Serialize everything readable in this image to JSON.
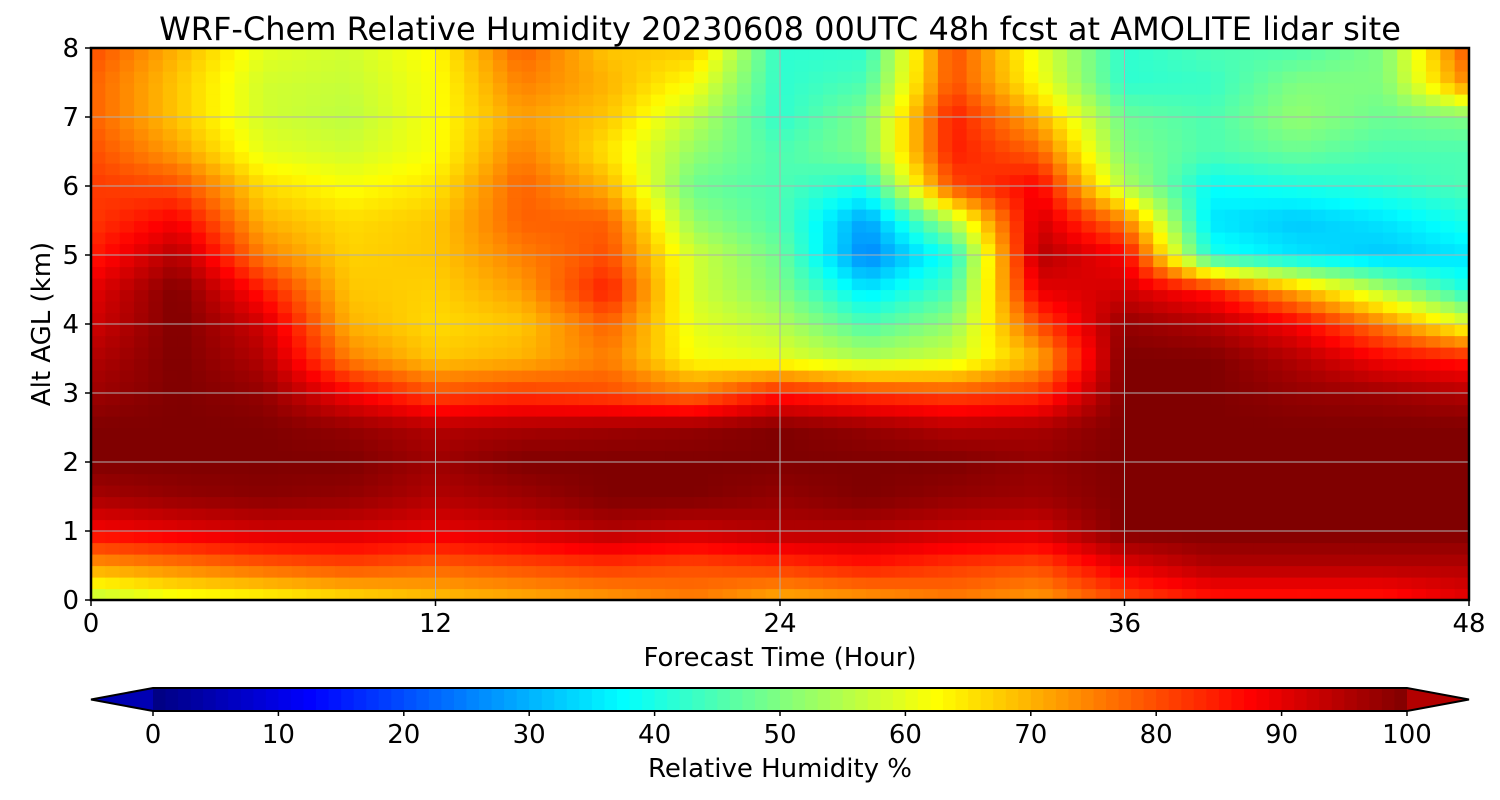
{
  "chart_data": {
    "type": "heatmap",
    "title": "WRF-Chem Relative Humidity 20230608 00UTC 48h fcst at AMOLITE lidar site",
    "xlabel": "Forecast Time (Hour)",
    "ylabel": "Alt AGL (km)",
    "xlim": [
      0,
      48
    ],
    "ylim": [
      0,
      8
    ],
    "x_ticks": [
      0,
      12,
      24,
      36,
      48
    ],
    "y_ticks": [
      0,
      1,
      2,
      3,
      4,
      5,
      6,
      7,
      8
    ],
    "grid": true,
    "colormap": "jet",
    "x": [
      0,
      3,
      6,
      9,
      12,
      15,
      18,
      21,
      24,
      27,
      30,
      33,
      36,
      39,
      42,
      45,
      48
    ],
    "y": [
      0,
      0.5,
      1,
      1.5,
      2,
      2.5,
      3,
      3.5,
      4,
      4.5,
      5,
      5.5,
      6,
      6.5,
      7,
      7.5,
      8
    ],
    "z": [
      [
        55,
        60,
        62,
        65,
        68,
        70,
        72,
        75,
        70,
        72,
        75,
        72,
        80,
        85,
        85,
        85,
        90
      ],
      [
        72,
        75,
        78,
        80,
        78,
        80,
        82,
        80,
        82,
        85,
        82,
        80,
        90,
        95,
        95,
        95,
        95
      ],
      [
        88,
        90,
        92,
        92,
        90,
        92,
        95,
        93,
        95,
        95,
        93,
        92,
        100,
        100,
        100,
        100,
        100
      ],
      [
        96,
        98,
        99,
        98,
        95,
        97,
        100,
        100,
        98,
        100,
        98,
        97,
        100,
        100,
        100,
        100,
        100
      ],
      [
        100,
        100,
        100,
        100,
        97,
        100,
        100,
        100,
        100,
        100,
        100,
        98,
        100,
        100,
        100,
        100,
        100
      ],
      [
        100,
        100,
        100,
        98,
        95,
        96,
        97,
        98,
        100,
        98,
        95,
        96,
        100,
        100,
        100,
        100,
        100
      ],
      [
        97,
        100,
        98,
        88,
        80,
        82,
        80,
        76,
        85,
        82,
        80,
        82,
        100,
        100,
        98,
        97,
        95
      ],
      [
        95,
        100,
        95,
        75,
        68,
        70,
        75,
        62,
        60,
        55,
        58,
        70,
        100,
        100,
        95,
        88,
        85
      ],
      [
        92,
        100,
        92,
        70,
        66,
        68,
        78,
        60,
        55,
        45,
        52,
        80,
        98,
        95,
        88,
        75,
        60
      ],
      [
        90,
        100,
        85,
        68,
        67,
        72,
        85,
        58,
        50,
        35,
        45,
        90,
        92,
        85,
        70,
        55,
        40
      ],
      [
        85,
        95,
        75,
        67,
        68,
        75,
        80,
        58,
        48,
        25,
        40,
        95,
        88,
        40,
        35,
        32,
        35
      ],
      [
        82,
        88,
        70,
        66,
        68,
        78,
        78,
        52,
        45,
        28,
        55,
        92,
        75,
        35,
        32,
        35,
        40
      ],
      [
        82,
        80,
        66,
        62,
        65,
        78,
        70,
        48,
        45,
        40,
        80,
        88,
        55,
        38,
        40,
        42,
        45
      ],
      [
        80,
        72,
        60,
        58,
        62,
        75,
        65,
        52,
        45,
        50,
        85,
        78,
        50,
        45,
        48,
        45,
        45
      ],
      [
        78,
        68,
        58,
        56,
        62,
        72,
        68,
        56,
        42,
        50,
        85,
        70,
        48,
        45,
        52,
        48,
        50
      ],
      [
        78,
        68,
        58,
        57,
        62,
        75,
        70,
        62,
        42,
        45,
        80,
        62,
        42,
        43,
        50,
        50,
        75
      ],
      [
        80,
        70,
        60,
        58,
        63,
        78,
        68,
        68,
        42,
        42,
        80,
        60,
        42,
        45,
        45,
        50,
        80
      ]
    ],
    "colorbar": {
      "label": "Relative Humidity %",
      "min": 0,
      "max": 100,
      "ticks": [
        0,
        10,
        20,
        30,
        40,
        50,
        60,
        70,
        80,
        90,
        100
      ],
      "extend": "both",
      "orientation": "horizontal"
    }
  }
}
